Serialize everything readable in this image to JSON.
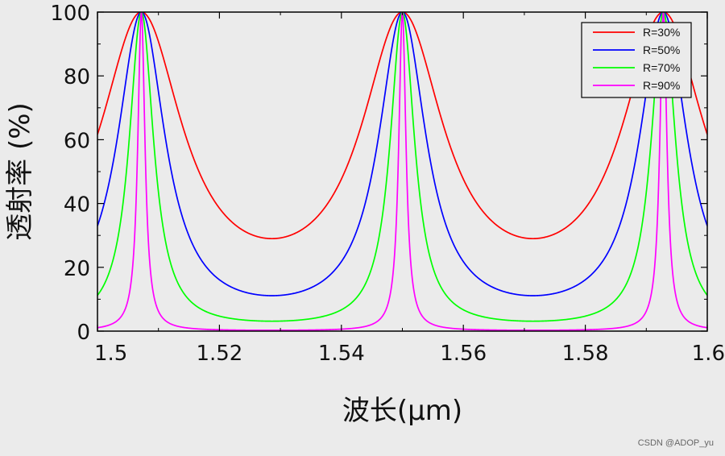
{
  "chart_data": {
    "type": "line",
    "xlabel": "波长(μm)",
    "ylabel": "透射率 (%)",
    "xlim": [
      1.5,
      1.6
    ],
    "ylim": [
      0,
      100
    ],
    "x_ticks": [
      1.5,
      1.52,
      1.54,
      1.56,
      1.58,
      1.6
    ],
    "x_tick_labels": [
      "1.5",
      "1.52",
      "1.54",
      "1.56",
      "1.58",
      "1.6"
    ],
    "y_ticks": [
      0,
      20,
      40,
      60,
      80,
      100
    ],
    "y_tick_labels": [
      "0",
      "20",
      "40",
      "60",
      "80",
      "100"
    ],
    "peaks_um": [
      1.5072,
      1.55,
      1.5932
    ],
    "grid": false,
    "legend_position": "top-right",
    "series": [
      {
        "name": "R=30%",
        "reflectance": 0.3,
        "color": "#ff0000"
      },
      {
        "name": "R=50%",
        "reflectance": 0.5,
        "color": "#0000ff"
      },
      {
        "name": "R=70%",
        "reflectance": 0.7,
        "color": "#00ff00"
      },
      {
        "name": "R=90%",
        "reflectance": 0.9,
        "color": "#ff00ff"
      }
    ]
  },
  "watermark": "CSDN @ADOP_yu"
}
